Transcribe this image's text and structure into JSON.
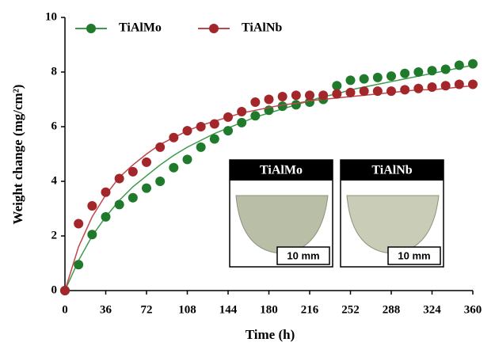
{
  "chart_data": {
    "type": "scatter",
    "x_label": "Time (h)",
    "y_label": "Weight change (mg/cm²)",
    "x": [
      0,
      12,
      24,
      36,
      48,
      60,
      72,
      84,
      96,
      108,
      120,
      132,
      144,
      156,
      168,
      180,
      192,
      204,
      216,
      228,
      240,
      252,
      264,
      276,
      288,
      300,
      312,
      324,
      336,
      348,
      360
    ],
    "series": [
      {
        "name": "TiAlMo",
        "color": "#1f7a2c",
        "fit_color": "#3c9a48",
        "values": [
          0,
          0.95,
          2.05,
          2.7,
          3.15,
          3.4,
          3.75,
          4.0,
          4.5,
          4.8,
          5.25,
          5.55,
          5.85,
          6.15,
          6.4,
          6.6,
          6.75,
          6.8,
          6.9,
          7.0,
          7.5,
          7.7,
          7.75,
          7.8,
          7.85,
          7.95,
          8.0,
          8.05,
          8.1,
          8.25,
          8.3
        ],
        "fit": [
          0,
          1.1,
          2.0,
          2.7,
          3.3,
          3.8,
          4.2,
          4.6,
          4.95,
          5.25,
          5.5,
          5.75,
          5.95,
          6.15,
          6.35,
          6.5,
          6.65,
          6.8,
          6.95,
          7.1,
          7.2,
          7.35,
          7.45,
          7.55,
          7.65,
          7.75,
          7.85,
          7.95,
          8.05,
          8.15,
          8.25
        ]
      },
      {
        "name": "TiAlNb",
        "color": "#a3262a",
        "fit_color": "#c0474b",
        "values": [
          0,
          2.45,
          3.1,
          3.6,
          4.1,
          4.35,
          4.7,
          5.25,
          5.6,
          5.85,
          6.0,
          6.1,
          6.35,
          6.55,
          6.9,
          7.0,
          7.1,
          7.15,
          7.15,
          7.15,
          7.2,
          7.25,
          7.3,
          7.3,
          7.3,
          7.35,
          7.4,
          7.45,
          7.5,
          7.55,
          7.55
        ],
        "fit": [
          0,
          1.6,
          2.7,
          3.5,
          4.15,
          4.6,
          5.0,
          5.35,
          5.6,
          5.85,
          6.05,
          6.2,
          6.35,
          6.5,
          6.6,
          6.7,
          6.8,
          6.85,
          6.95,
          7.0,
          7.05,
          7.1,
          7.15,
          7.2,
          7.25,
          7.3,
          7.35,
          7.35,
          7.4,
          7.45,
          7.5
        ]
      }
    ],
    "xlim": [
      0,
      360
    ],
    "xticks": [
      0,
      36,
      72,
      108,
      144,
      180,
      216,
      252,
      288,
      324,
      360
    ],
    "ylim": [
      0,
      10
    ],
    "yticks": [
      0,
      2,
      4,
      6,
      8,
      10
    ],
    "insets": [
      {
        "label": "TiAlMo",
        "scale": "10 mm"
      },
      {
        "label": "TiAlNb",
        "scale": "10 mm"
      }
    ]
  }
}
